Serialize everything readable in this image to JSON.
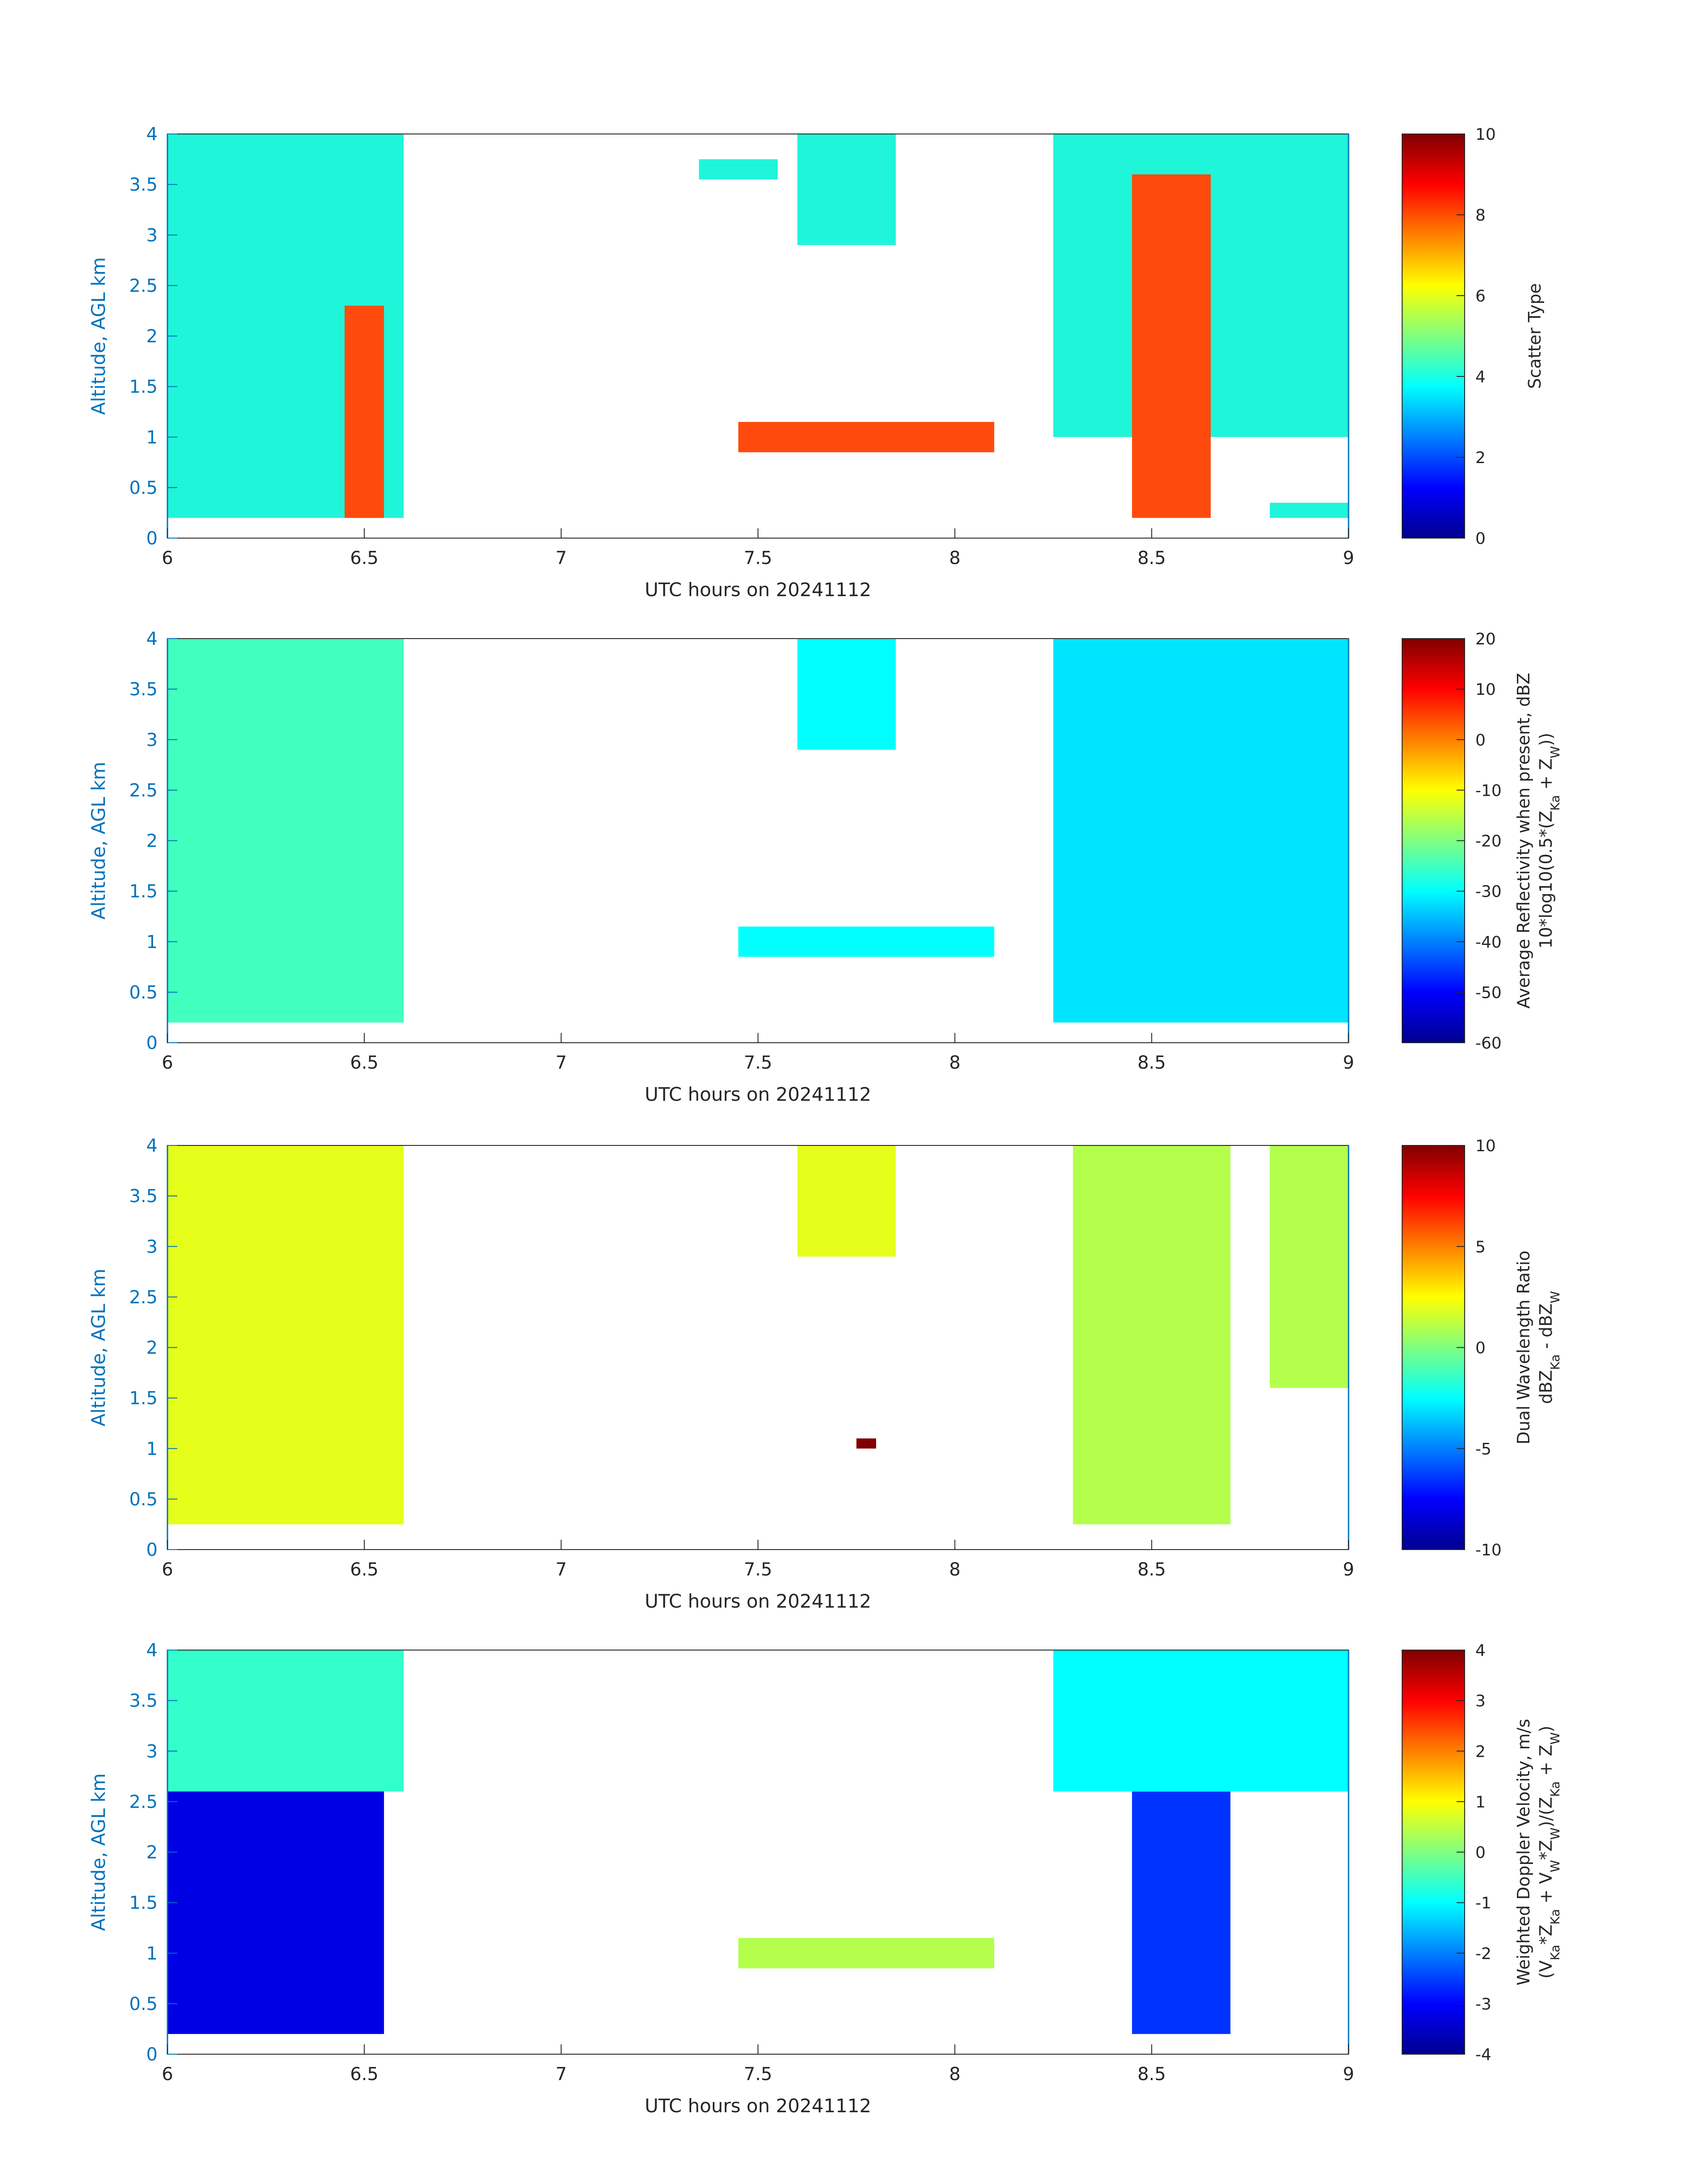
{
  "colors": {
    "axis": "#262626",
    "y_axis": "#0072BD",
    "scatter_cloud": "#1FF5D9",
    "scatter_precip": "#FF4A0D",
    "colormap": "jet"
  },
  "chart_data": [
    {
      "type": "heatmap",
      "title": "",
      "xlabel": "UTC hours on 20241112",
      "ylabel": "Altitude, AGL km",
      "xlim": [
        6,
        9
      ],
      "ylim": [
        0,
        4
      ],
      "xticks": [
        "6",
        "6.5",
        "7",
        "7.5",
        "8",
        "8.5",
        "9"
      ],
      "yticks": [
        "0",
        "0.5",
        "1",
        "1.5",
        "2",
        "2.5",
        "3",
        "3.5",
        "4"
      ],
      "colorbar": {
        "label": "Scatter Type",
        "sublabel": "",
        "clim": [
          0,
          10
        ],
        "ticks": [
          "0",
          "2",
          "4",
          "6",
          "8",
          "10"
        ]
      },
      "regions": [
        {
          "x": [
            6.0,
            6.6
          ],
          "y": [
            0.2,
            4.0
          ],
          "value": 4
        },
        {
          "x": [
            6.45,
            6.55
          ],
          "y": [
            0.2,
            2.3
          ],
          "value": 7.5
        },
        {
          "x": [
            7.35,
            7.55
          ],
          "y": [
            3.55,
            3.75
          ],
          "value": 4
        },
        {
          "x": [
            7.6,
            7.85
          ],
          "y": [
            2.9,
            4.0
          ],
          "value": 4
        },
        {
          "x": [
            8.25,
            9.0
          ],
          "y": [
            1.0,
            4.0
          ],
          "value": 4
        },
        {
          "x": [
            8.45,
            8.65
          ],
          "y": [
            0.2,
            3.6
          ],
          "value": 7.5
        },
        {
          "x": [
            7.45,
            8.1
          ],
          "y": [
            0.85,
            1.15
          ],
          "value": 7.5
        },
        {
          "x": [
            8.8,
            9.0
          ],
          "y": [
            0.2,
            0.35
          ],
          "value": 4
        }
      ]
    },
    {
      "type": "heatmap",
      "title": "",
      "xlabel": "UTC hours on 20241112",
      "ylabel": "Altitude, AGL km",
      "xlim": [
        6,
        9
      ],
      "ylim": [
        0,
        4
      ],
      "xticks": [
        "6",
        "6.5",
        "7",
        "7.5",
        "8",
        "8.5",
        "9"
      ],
      "yticks": [
        "0",
        "0.5",
        "1",
        "1.5",
        "2",
        "2.5",
        "3",
        "3.5",
        "4"
      ],
      "colorbar": {
        "label": "Average Reflectivity when present, dBZ",
        "sublabel": "10*log10(0.5*(Z_Ka + Z_W))",
        "clim": [
          -60,
          20
        ],
        "ticks": [
          "-60",
          "-50",
          "-40",
          "-30",
          "-20",
          "-10",
          "0",
          "10",
          "20"
        ]
      },
      "regions": [
        {
          "x": [
            6.0,
            6.6
          ],
          "y": [
            0.2,
            4.0
          ],
          "value": -25
        },
        {
          "x": [
            7.6,
            7.85
          ],
          "y": [
            2.9,
            4.0
          ],
          "value": -30
        },
        {
          "x": [
            8.25,
            9.0
          ],
          "y": [
            0.2,
            4.0
          ],
          "value": -32
        },
        {
          "x": [
            7.45,
            8.1
          ],
          "y": [
            0.85,
            1.15
          ],
          "value": -30
        }
      ]
    },
    {
      "type": "heatmap",
      "title": "",
      "xlabel": "UTC hours on 20241112",
      "ylabel": "Altitude, AGL km",
      "xlim": [
        6,
        9
      ],
      "ylim": [
        0,
        4
      ],
      "xticks": [
        "6",
        "6.5",
        "7",
        "7.5",
        "8",
        "8.5",
        "9"
      ],
      "yticks": [
        "0",
        "0.5",
        "1",
        "1.5",
        "2",
        "2.5",
        "3",
        "3.5",
        "4"
      ],
      "colorbar": {
        "label": "Dual Wavelength Ratio",
        "sublabel": "dBZ_Ka - dBZ_W",
        "clim": [
          -10,
          10
        ],
        "ticks": [
          "-10",
          "-5",
          "0",
          "5",
          "10"
        ]
      },
      "regions": [
        {
          "x": [
            6.0,
            6.6
          ],
          "y": [
            0.25,
            4.0
          ],
          "value": 2
        },
        {
          "x": [
            8.3,
            8.7
          ],
          "y": [
            0.25,
            4.0
          ],
          "value": 1
        },
        {
          "x": [
            7.6,
            7.85
          ],
          "y": [
            2.9,
            4.0
          ],
          "value": 2
        },
        {
          "x": [
            8.8,
            9.0
          ],
          "y": [
            1.6,
            4.0
          ],
          "value": 1
        },
        {
          "x": [
            7.75,
            7.8
          ],
          "y": [
            1.0,
            1.1
          ],
          "value": 10
        }
      ]
    },
    {
      "type": "heatmap",
      "title": "",
      "xlabel": "UTC hours on 20241112",
      "ylabel": "Altitude, AGL km",
      "xlim": [
        6,
        9
      ],
      "ylim": [
        0,
        4
      ],
      "xticks": [
        "6",
        "6.5",
        "7",
        "7.5",
        "8",
        "8.5",
        "9"
      ],
      "yticks": [
        "0",
        "0.5",
        "1",
        "1.5",
        "2",
        "2.5",
        "3",
        "3.5",
        "4"
      ],
      "colorbar": {
        "label": "Weighted Doppler Velocity, m/s",
        "sublabel": "(V_Ka*Z_Ka + V_W*Z_W)/(Z_Ka + Z_W)",
        "clim": [
          -4,
          4
        ],
        "ticks": [
          "-4",
          "-3",
          "-2",
          "-1",
          "0",
          "1",
          "2",
          "3",
          "4"
        ]
      },
      "regions": [
        {
          "x": [
            6.0,
            6.6
          ],
          "y": [
            2.6,
            4.0
          ],
          "value": -0.6
        },
        {
          "x": [
            6.0,
            6.55
          ],
          "y": [
            0.2,
            2.6
          ],
          "value": -3.2
        },
        {
          "x": [
            8.45,
            8.7
          ],
          "y": [
            0.2,
            2.6
          ],
          "value": -2.6
        },
        {
          "x": [
            8.25,
            9.0
          ],
          "y": [
            2.6,
            4.0
          ],
          "value": -1
        },
        {
          "x": [
            7.45,
            8.1
          ],
          "y": [
            0.85,
            1.15
          ],
          "value": 0.4
        }
      ]
    }
  ]
}
